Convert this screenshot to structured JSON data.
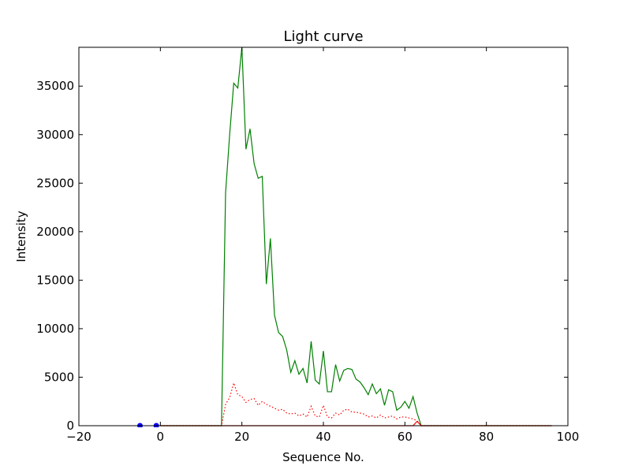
{
  "chart_data": {
    "type": "line",
    "title": "Light curve",
    "xlabel": "Sequence No.",
    "ylabel": "Intensity",
    "xlim": [
      -20,
      100
    ],
    "ylim": [
      0,
      39000
    ],
    "xticks": [
      -20,
      0,
      20,
      40,
      60,
      80,
      100
    ],
    "yticks": [
      0,
      5000,
      10000,
      15000,
      20000,
      25000,
      30000,
      35000
    ],
    "grid": false,
    "legend": "none",
    "series": [
      {
        "color": "#008000",
        "style": "solid",
        "x": [
          0,
          15,
          16,
          17,
          18,
          19,
          20,
          21,
          22,
          23,
          24,
          25,
          26,
          27,
          28,
          29,
          30,
          31,
          32,
          33,
          34,
          35,
          36,
          37,
          38,
          39,
          40,
          41,
          42,
          43,
          44,
          45,
          46,
          47,
          48,
          49,
          50,
          51,
          52,
          53,
          54,
          55,
          56,
          57,
          58,
          59,
          60,
          61,
          62,
          63,
          64,
          96
        ],
        "y": [
          0,
          0,
          24000,
          30000,
          35300,
          34800,
          39000,
          28500,
          30600,
          27000,
          25500,
          25700,
          14600,
          19300,
          11400,
          9600,
          9200,
          7800,
          5500,
          6700,
          5300,
          5900,
          4400,
          8700,
          4700,
          4300,
          7700,
          3500,
          3500,
          6300,
          4600,
          5700,
          5900,
          5800,
          4800,
          4500,
          3900,
          3200,
          4300,
          3300,
          3800,
          2100,
          3700,
          3500,
          1600,
          1900,
          2500,
          1800,
          3000,
          1300,
          0,
          0
        ]
      },
      {
        "color": "#ff0000",
        "style": "dotted",
        "x": [
          0,
          15,
          16,
          17,
          18,
          19,
          20,
          21,
          22,
          23,
          24,
          25,
          26,
          27,
          28,
          29,
          30,
          31,
          32,
          33,
          34,
          35,
          36,
          37,
          38,
          39,
          40,
          41,
          42,
          43,
          44,
          45,
          46,
          47,
          48,
          49,
          50,
          51,
          52,
          53,
          54,
          55,
          56,
          57,
          58,
          59,
          60,
          61,
          62,
          63,
          64,
          96
        ],
        "y": [
          0,
          0,
          2200,
          2900,
          4400,
          3200,
          3000,
          2400,
          2700,
          2800,
          2100,
          2500,
          2200,
          2000,
          1800,
          1600,
          1700,
          1300,
          1200,
          1300,
          1000,
          1200,
          900,
          2000,
          1000,
          900,
          2100,
          900,
          800,
          1300,
          1100,
          1600,
          1700,
          1400,
          1400,
          1300,
          1200,
          900,
          1000,
          800,
          1100,
          800,
          900,
          1000,
          700,
          900,
          900,
          800,
          700,
          500,
          0,
          0
        ]
      },
      {
        "color": "#ff0000",
        "style": "solid",
        "x": [
          0,
          62,
          63,
          64,
          96
        ],
        "y": [
          0,
          0,
          450,
          0,
          0
        ]
      },
      {
        "color": "#0000ff",
        "style": "points",
        "x": [
          -5,
          -1
        ],
        "y": [
          0,
          0
        ]
      }
    ]
  }
}
